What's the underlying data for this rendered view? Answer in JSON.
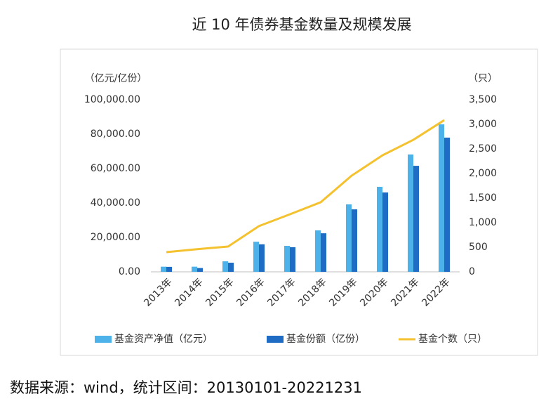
{
  "chart_data": {
    "type": "bar",
    "title": "近 10 年债券基金数量及规模发展",
    "y_label": "（亿元/亿份）",
    "y2_label": "（只）",
    "source": "数据来源：wind，统计区间：20130101-20221231",
    "categories": [
      "2013年",
      "2014年",
      "2015年",
      "2016年",
      "2017年",
      "2018年",
      "2019年",
      "2020年",
      "2021年",
      "2022年"
    ],
    "series": [
      {
        "name": "基金资产净值（亿元）",
        "type": "bar",
        "color": "#4db2ea",
        "values": [
          3000,
          3000,
          6100,
          17500,
          15100,
          24100,
          39200,
          49400,
          68200,
          85700
        ]
      },
      {
        "name": "基金份额（亿份）",
        "type": "bar",
        "color": "#1e6cc4",
        "values": [
          2900,
          2200,
          5300,
          16000,
          14300,
          22400,
          36300,
          46100,
          61600,
          78000
        ]
      },
      {
        "name": "基金个数（只）",
        "type": "line",
        "axis": "y2",
        "color": "#f4c12f",
        "values": [
          400,
          460,
          515,
          930,
          1170,
          1415,
          1955,
          2370,
          2685,
          3085
        ]
      }
    ],
    "ylim": [
      0,
      100000
    ],
    "yticks": [
      {
        "value": 0,
        "label": "0.00"
      },
      {
        "value": 20000,
        "label": "20,000.00"
      },
      {
        "value": 40000,
        "label": "40,000.00"
      },
      {
        "value": 60000,
        "label": "60,000.00"
      },
      {
        "value": 80000,
        "label": "80,000.00"
      },
      {
        "value": 100000,
        "label": "100,000.00"
      }
    ],
    "y2lim": [
      0,
      3500
    ],
    "y2ticks": [
      0,
      500,
      {
        "value": 1000,
        "label": "1,000"
      },
      {
        "value": 1500,
        "label": "1,500"
      },
      {
        "value": 2000,
        "label": "2,000"
      },
      {
        "value": 2500,
        "label": "2,500"
      },
      {
        "value": 3000,
        "label": "3,000"
      },
      {
        "value": 3500,
        "label": "3,500"
      }
    ],
    "grid": false,
    "legend": "bottom"
  }
}
